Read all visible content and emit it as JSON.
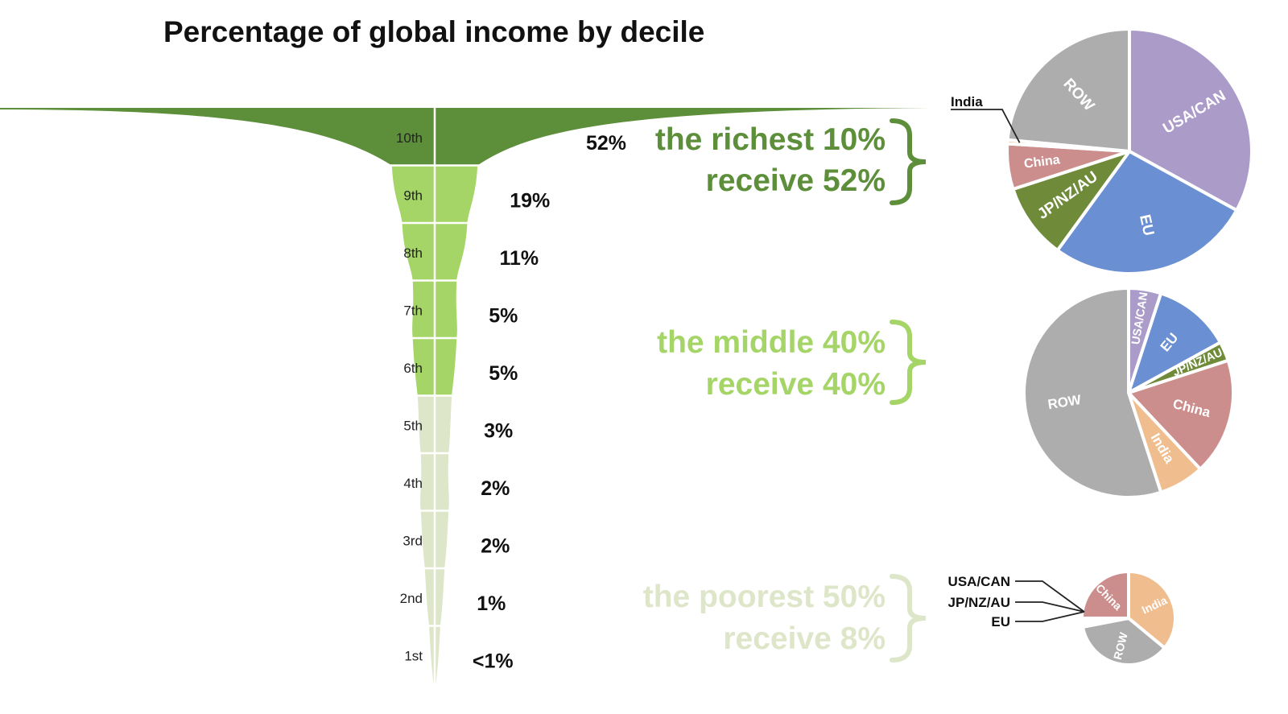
{
  "chart_data": {
    "type": "funnel",
    "title": "Percentage of global income by decile",
    "colors": {
      "top": "#5d8f3b",
      "middle": "#a5d467",
      "bottom": "#dde6c8",
      "USA/CAN": "#ab9bc9",
      "EU": "#6a8fd2",
      "JP/NZ/AU": "#6f8b3a",
      "China": "#cc8d8d",
      "India": "#efbd8e",
      "ROW": "#adadad"
    },
    "deciles": [
      {
        "label": "10th",
        "value": 52,
        "value_label": "52%",
        "group": "top"
      },
      {
        "label": "9th",
        "value": 19,
        "value_label": "19%",
        "group": "middle"
      },
      {
        "label": "8th",
        "value": 11,
        "value_label": "11%",
        "group": "middle"
      },
      {
        "label": "7th",
        "value": 5,
        "value_label": "5%",
        "group": "middle"
      },
      {
        "label": "6th",
        "value": 5,
        "value_label": "5%",
        "group": "middle"
      },
      {
        "label": "5th",
        "value": 3,
        "value_label": "3%",
        "group": "bottom"
      },
      {
        "label": "4th",
        "value": 2,
        "value_label": "2%",
        "group": "bottom"
      },
      {
        "label": "3rd",
        "value": 2,
        "value_label": "2%",
        "group": "bottom"
      },
      {
        "label": "2nd",
        "value": 1,
        "value_label": "1%",
        "group": "bottom"
      },
      {
        "label": "1st",
        "value": 0.5,
        "value_label": "<1%",
        "group": "bottom"
      }
    ],
    "groups": [
      {
        "id": "top",
        "line1": "the richest 10%",
        "line2": "receive 52%"
      },
      {
        "id": "middle",
        "line1": "the middle 40%",
        "line2": "receive 40%"
      },
      {
        "id": "bottom",
        "line1": "the poorest 50%",
        "line2": "receive 8%"
      }
    ],
    "pies": [
      {
        "group": "top",
        "slices": [
          {
            "name": "USA/CAN",
            "value": 33
          },
          {
            "name": "EU",
            "value": 27
          },
          {
            "name": "JP/NZ/AU",
            "value": 10
          },
          {
            "name": "China",
            "value": 6
          },
          {
            "name": "India",
            "value": 0.5
          },
          {
            "name": "ROW",
            "value": 23.5
          }
        ]
      },
      {
        "group": "middle",
        "slices": [
          {
            "name": "USA/CAN",
            "value": 5
          },
          {
            "name": "EU",
            "value": 12
          },
          {
            "name": "JP/NZ/AU",
            "value": 3
          },
          {
            "name": "China",
            "value": 18
          },
          {
            "name": "India",
            "value": 7
          },
          {
            "name": "ROW",
            "value": 55
          }
        ]
      },
      {
        "group": "bottom",
        "slices": [
          {
            "name": "India",
            "value": 36
          },
          {
            "name": "ROW",
            "value": 36
          },
          {
            "name": "EU",
            "value": 1
          },
          {
            "name": "JP/NZ/AU",
            "value": 1
          },
          {
            "name": "USA/CAN",
            "value": 1
          },
          {
            "name": "China",
            "value": 25
          }
        ]
      }
    ]
  }
}
